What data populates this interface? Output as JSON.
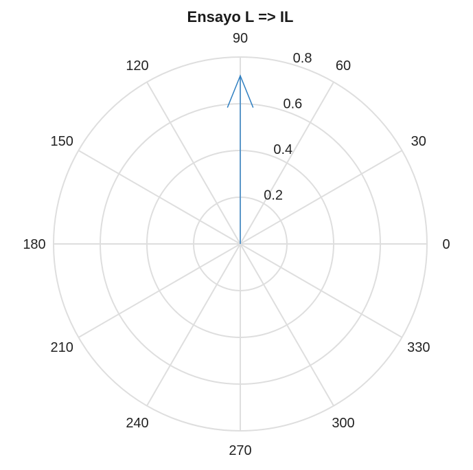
{
  "chart_data": {
    "type": "polar",
    "title": "Ensayo L => IL",
    "angle_ticks": [
      {
        "value": 0,
        "label": "0"
      },
      {
        "value": 30,
        "label": "30"
      },
      {
        "value": 60,
        "label": "60"
      },
      {
        "value": 90,
        "label": "90"
      },
      {
        "value": 120,
        "label": "120"
      },
      {
        "value": 150,
        "label": "150"
      },
      {
        "value": 180,
        "label": "180"
      },
      {
        "value": 210,
        "label": "210"
      },
      {
        "value": 240,
        "label": "240"
      },
      {
        "value": 270,
        "label": "270"
      },
      {
        "value": 300,
        "label": "300"
      },
      {
        "value": 330,
        "label": "330"
      }
    ],
    "radial_ticks": [
      {
        "value": 0.2,
        "label": "0.2"
      },
      {
        "value": 0.4,
        "label": "0.4"
      },
      {
        "value": 0.6,
        "label": "0.6"
      },
      {
        "value": 0.8,
        "label": "0.8"
      }
    ],
    "rlim": [
      0,
      0.8
    ],
    "grid": true,
    "series": [
      {
        "kind": "compass-arrow",
        "angle_deg": 90,
        "magnitude": 0.72,
        "color": "#2f7fc1"
      }
    ],
    "colors": {
      "grid": "#dedede",
      "text": "#222222"
    }
  }
}
